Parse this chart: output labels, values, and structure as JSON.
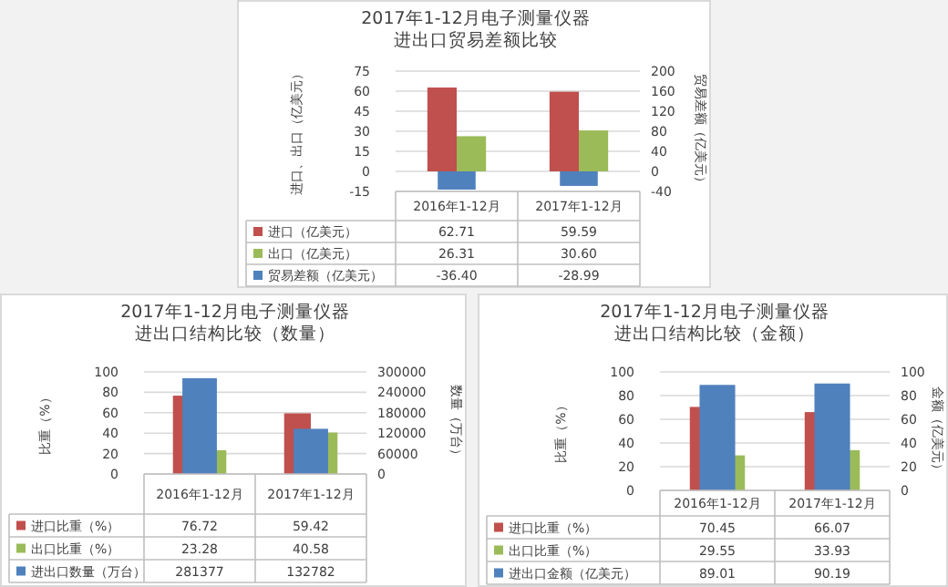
{
  "chart_data": [
    {
      "type": "bar",
      "title": "2017年1-12月电子测量仪器",
      "subtitle": "进出口贸易差额比较",
      "categories": [
        "2016年1-12月",
        "2017年1-12月"
      ],
      "series": [
        {
          "name": "进口（亿美元）",
          "color": "#c0504d",
          "values": [
            62.71,
            59.59
          ],
          "value_labels": [
            "62.71",
            "59.59"
          ]
        },
        {
          "name": "出口（亿美元）",
          "color": "#9bbb59",
          "values": [
            26.31,
            30.6
          ],
          "value_labels": [
            "26.31",
            "30.60"
          ]
        },
        {
          "name": "贸易差额（亿美元）",
          "color": "#4f81bd",
          "values": [
            -36.4,
            -28.99
          ],
          "value_labels": [
            "-36.40",
            "-28.99"
          ],
          "axis": "y2"
        }
      ],
      "ylabel": "进口、出口（亿美元）",
      "y2label": "贸易差额（亿美元）",
      "ylim": [
        -15,
        75
      ],
      "yticks": [
        -15,
        0,
        15,
        30,
        45,
        60,
        75
      ],
      "y2lim": [
        -40,
        200
      ],
      "y2ticks": [
        -40,
        0,
        40,
        80,
        120,
        160,
        200
      ],
      "grid": "y",
      "legend": "bottom"
    },
    {
      "type": "bar",
      "title": "2017年1-12月电子测量仪器",
      "subtitle": "进出口结构比较（数量）",
      "categories": [
        "2016年1-12月",
        "2017年1-12月"
      ],
      "series": [
        {
          "name": "进口比重（%）",
          "color": "#c0504d",
          "values": [
            76.72,
            59.42
          ],
          "value_labels": [
            "76.72",
            "59.42"
          ]
        },
        {
          "name": "出口比重（%）",
          "color": "#9bbb59",
          "values": [
            23.28,
            40.58
          ],
          "value_labels": [
            "23.28",
            "40.58"
          ]
        },
        {
          "name": "进出口数量（万台）",
          "color": "#4f81bd",
          "values": [
            281377,
            132782
          ],
          "value_labels": [
            "281377",
            "132782"
          ],
          "axis": "y2"
        }
      ],
      "ylabel": "比重（%）",
      "y2label": "数量（万台）",
      "ylim": [
        0,
        100
      ],
      "yticks": [
        0,
        20,
        40,
        60,
        80,
        100
      ],
      "y2lim": [
        0,
        300000
      ],
      "y2ticks": [
        0,
        60000,
        120000,
        180000,
        240000,
        300000
      ],
      "grid": "y",
      "legend": "bottom"
    },
    {
      "type": "bar",
      "title": "2017年1-12月电子测量仪器",
      "subtitle": "进出口结构比较（金额）",
      "categories": [
        "2016年1-12月",
        "2017年1-12月"
      ],
      "series": [
        {
          "name": "进口比重（%）",
          "color": "#c0504d",
          "values": [
            70.45,
            66.07
          ],
          "value_labels": [
            "70.45",
            "66.07"
          ]
        },
        {
          "name": "出口比重（%）",
          "color": "#9bbb59",
          "values": [
            29.55,
            33.93
          ],
          "value_labels": [
            "29.55",
            "33.93"
          ]
        },
        {
          "name": "进出口金额（亿美元）",
          "color": "#4f81bd",
          "values": [
            89.01,
            90.19
          ],
          "value_labels": [
            "89.01",
            "90.19"
          ],
          "axis": "y2"
        }
      ],
      "ylabel": "比重（%）",
      "y2label": "金额（亿美元）",
      "ylim": [
        0,
        100
      ],
      "yticks": [
        0,
        20,
        40,
        60,
        80,
        100
      ],
      "y2lim": [
        0,
        100
      ],
      "y2ticks": [
        0,
        20,
        40,
        60,
        80,
        100
      ],
      "grid": "y",
      "legend": "bottom"
    }
  ]
}
